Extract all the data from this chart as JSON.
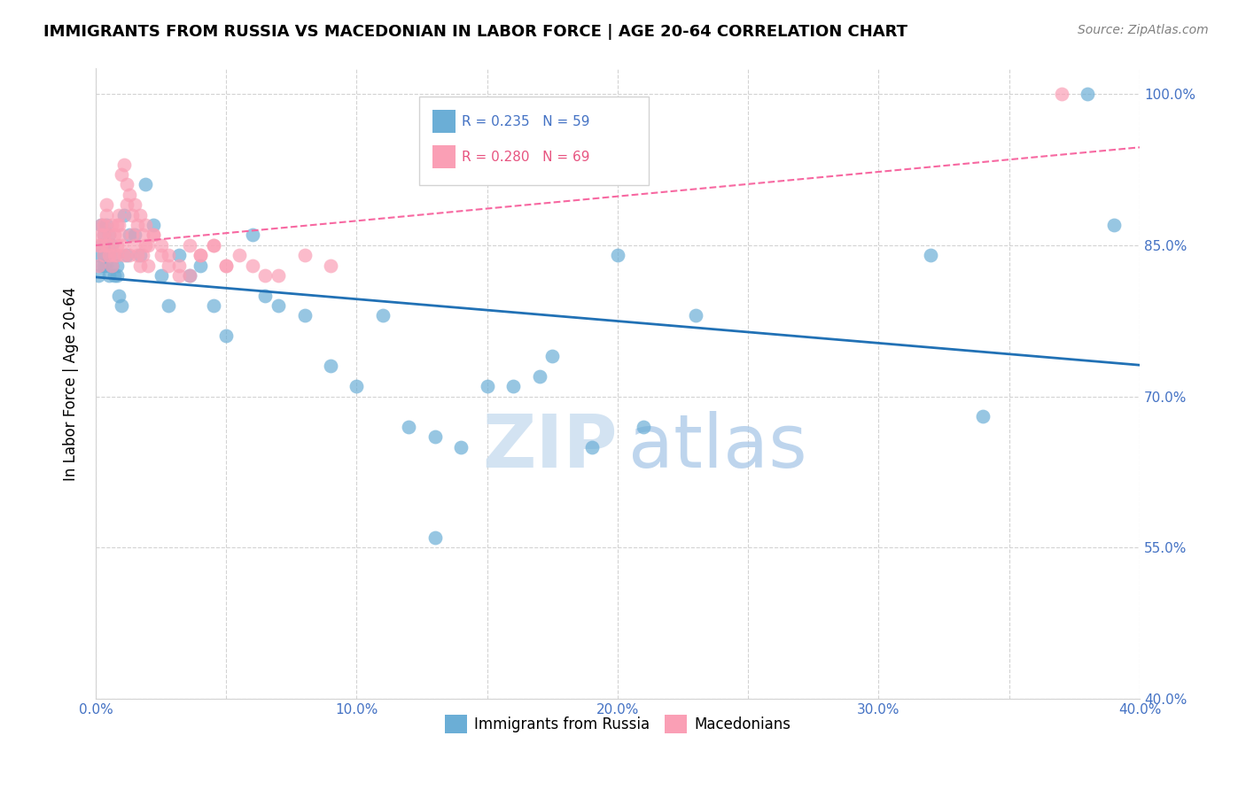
{
  "title": "IMMIGRANTS FROM RUSSIA VS MACEDONIAN IN LABOR FORCE | AGE 20-64 CORRELATION CHART",
  "source": "Source: ZipAtlas.com",
  "ylabel": "In Labor Force | Age 20-64",
  "xlim": [
    0.0,
    0.4
  ],
  "ylim": [
    0.4,
    1.025
  ],
  "yticks": [
    0.4,
    0.55,
    0.7,
    0.85,
    1.0
  ],
  "ytick_labels": [
    "40.0%",
    "55.0%",
    "70.0%",
    "85.0%",
    "100.0%"
  ],
  "xticks": [
    0.0,
    0.05,
    0.1,
    0.15,
    0.2,
    0.25,
    0.3,
    0.35,
    0.4
  ],
  "xtick_labels": [
    "0.0%",
    "",
    "10.0%",
    "",
    "20.0%",
    "",
    "30.0%",
    "",
    "40.0%"
  ],
  "blue_color": "#6baed6",
  "pink_color": "#fa9fb5",
  "blue_line_color": "#2171b5",
  "pink_line_color": "#f768a1",
  "russia_x": [
    0.001,
    0.001,
    0.002,
    0.002,
    0.002,
    0.003,
    0.003,
    0.003,
    0.004,
    0.004,
    0.004,
    0.005,
    0.005,
    0.005,
    0.006,
    0.006,
    0.007,
    0.007,
    0.008,
    0.008,
    0.009,
    0.01,
    0.011,
    0.012,
    0.013,
    0.015,
    0.017,
    0.019,
    0.022,
    0.025,
    0.028,
    0.032,
    0.036,
    0.04,
    0.045,
    0.05,
    0.06,
    0.065,
    0.07,
    0.08,
    0.09,
    0.1,
    0.11,
    0.12,
    0.13,
    0.15,
    0.17,
    0.19,
    0.21,
    0.23,
    0.13,
    0.14,
    0.16,
    0.175,
    0.2,
    0.32,
    0.34,
    0.38,
    0.39
  ],
  "russia_y": [
    0.82,
    0.84,
    0.87,
    0.83,
    0.85,
    0.86,
    0.84,
    0.83,
    0.85,
    0.87,
    0.83,
    0.82,
    0.86,
    0.84,
    0.83,
    0.85,
    0.82,
    0.84,
    0.83,
    0.82,
    0.8,
    0.79,
    0.88,
    0.84,
    0.86,
    0.86,
    0.84,
    0.91,
    0.87,
    0.82,
    0.79,
    0.84,
    0.82,
    0.83,
    0.79,
    0.76,
    0.86,
    0.8,
    0.79,
    0.78,
    0.73,
    0.71,
    0.78,
    0.67,
    0.66,
    0.71,
    0.72,
    0.65,
    0.67,
    0.78,
    0.56,
    0.65,
    0.71,
    0.74,
    0.84,
    0.84,
    0.68,
    1.0,
    0.87
  ],
  "macedonian_x": [
    0.001,
    0.001,
    0.002,
    0.002,
    0.002,
    0.003,
    0.003,
    0.003,
    0.004,
    0.004,
    0.004,
    0.005,
    0.005,
    0.005,
    0.006,
    0.006,
    0.007,
    0.007,
    0.008,
    0.008,
    0.008,
    0.009,
    0.009,
    0.01,
    0.01,
    0.011,
    0.012,
    0.013,
    0.014,
    0.015,
    0.016,
    0.017,
    0.018,
    0.019,
    0.02,
    0.022,
    0.025,
    0.028,
    0.032,
    0.036,
    0.04,
    0.045,
    0.05,
    0.055,
    0.06,
    0.065,
    0.07,
    0.08,
    0.09,
    0.01,
    0.011,
    0.012,
    0.013,
    0.014,
    0.015,
    0.016,
    0.017,
    0.018,
    0.019,
    0.02,
    0.022,
    0.025,
    0.028,
    0.032,
    0.036,
    0.04,
    0.045,
    0.05,
    0.37
  ],
  "macedonian_y": [
    0.83,
    0.85,
    0.87,
    0.86,
    0.85,
    0.84,
    0.86,
    0.87,
    0.88,
    0.89,
    0.85,
    0.86,
    0.84,
    0.85,
    0.83,
    0.87,
    0.84,
    0.86,
    0.85,
    0.84,
    0.87,
    0.88,
    0.87,
    0.86,
    0.85,
    0.84,
    0.89,
    0.84,
    0.86,
    0.85,
    0.84,
    0.83,
    0.84,
    0.85,
    0.83,
    0.86,
    0.84,
    0.83,
    0.82,
    0.85,
    0.84,
    0.85,
    0.83,
    0.84,
    0.83,
    0.82,
    0.82,
    0.84,
    0.83,
    0.92,
    0.93,
    0.91,
    0.9,
    0.88,
    0.89,
    0.87,
    0.88,
    0.86,
    0.87,
    0.85,
    0.86,
    0.85,
    0.84,
    0.83,
    0.82,
    0.84,
    0.85,
    0.83,
    1.0
  ]
}
